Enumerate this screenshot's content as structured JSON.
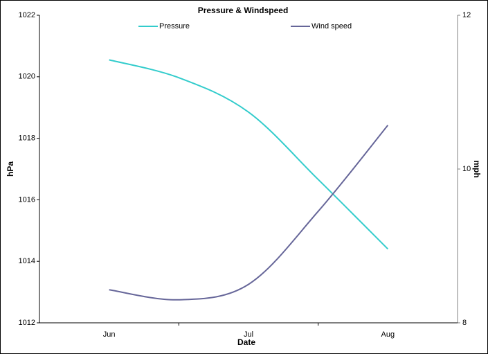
{
  "chart_data": {
    "type": "line",
    "title": "Pressure & Windspeed",
    "x_label": "Date",
    "y_label": "hPa",
    "y2_label": "mph",
    "categories": [
      "Jun",
      null,
      "Jul",
      null,
      "Aug"
    ],
    "series": [
      {
        "name": "Pressure",
        "color": "#33cccc",
        "values": [
          1020.55,
          1019.97,
          1018.85,
          1016.66,
          1014.4
        ]
      },
      {
        "name": "Wind speed",
        "color": "#666699",
        "axis": "y2",
        "values": [
          8.43,
          8.3,
          8.5,
          9.45,
          10.57
        ]
      }
    ],
    "ylim": [
      1012,
      1022
    ],
    "yticks": [
      1012,
      1014,
      1016,
      1018,
      1020,
      1022
    ],
    "y2lim": [
      8,
      12
    ],
    "y2ticks": [
      8,
      10,
      12
    ],
    "smooth": true,
    "legend": "top"
  }
}
